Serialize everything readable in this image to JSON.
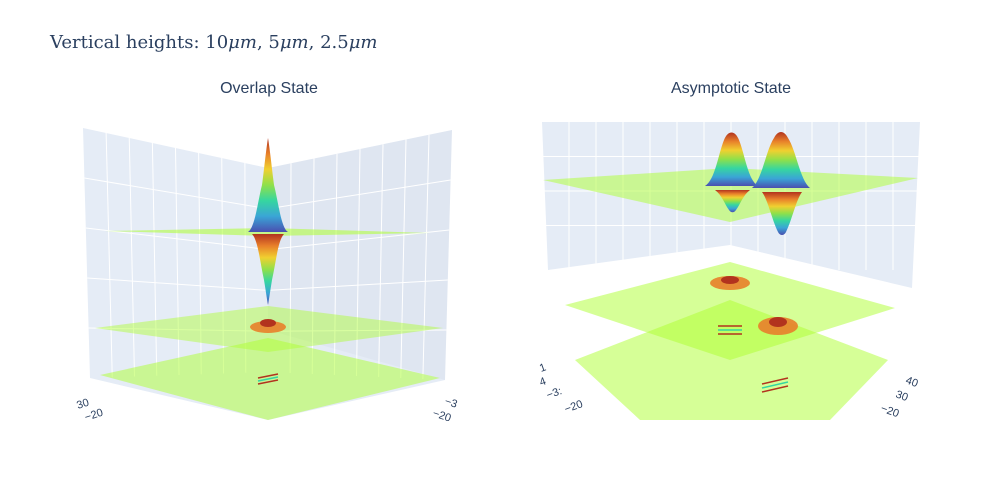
{
  "title": {
    "prefix": "Vertical heights: ",
    "v1": "10",
    "v2": "5",
    "v3": "2.5",
    "unit": "μm",
    "sep": ", "
  },
  "colors": {
    "plane": "#adff2f",
    "colorscale": [
      "#4a4fb0",
      "#3aa5d6",
      "#36d6a0",
      "#8fe04a",
      "#f0d030",
      "#e8802a",
      "#b2331e"
    ],
    "scene_bg": "#e5ecf6",
    "grid": "#ffffff",
    "text": "#2a3f5f"
  },
  "chart_data": [
    {
      "type": "surface",
      "title": "Overlap State",
      "grid": true,
      "planes_z_um": [
        10,
        5,
        2.5
      ],
      "tick_labels": {
        "left_axis": [
          "30",
          "−20"
        ],
        "right_axis": [
          "−3",
          "−20"
        ]
      }
    },
    {
      "type": "surface",
      "title": "Asymptotic State",
      "grid": true,
      "planes_z_um": [
        10,
        5,
        2.5
      ],
      "tick_labels": {
        "left_axis": [
          "1",
          "4",
          "−3:",
          "−20"
        ],
        "right_axis": [
          "40",
          "30",
          "−20"
        ]
      }
    }
  ]
}
